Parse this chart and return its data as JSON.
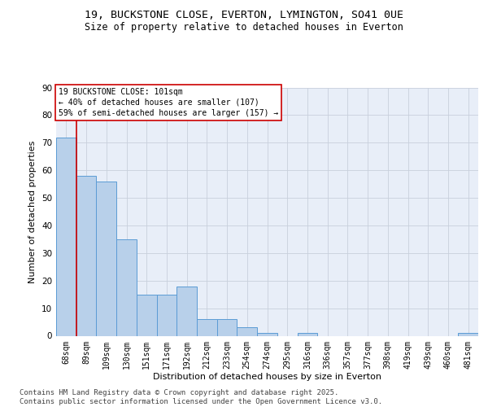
{
  "title1": "19, BUCKSTONE CLOSE, EVERTON, LYMINGTON, SO41 0UE",
  "title2": "Size of property relative to detached houses in Everton",
  "xlabel": "Distribution of detached houses by size in Everton",
  "ylabel": "Number of detached properties",
  "categories": [
    "68sqm",
    "89sqm",
    "109sqm",
    "130sqm",
    "151sqm",
    "171sqm",
    "192sqm",
    "212sqm",
    "233sqm",
    "254sqm",
    "274sqm",
    "295sqm",
    "316sqm",
    "336sqm",
    "357sqm",
    "377sqm",
    "398sqm",
    "419sqm",
    "439sqm",
    "460sqm",
    "481sqm"
  ],
  "values": [
    72,
    58,
    56,
    35,
    15,
    15,
    18,
    6,
    6,
    3,
    1,
    0,
    1,
    0,
    0,
    0,
    0,
    0,
    0,
    0,
    1
  ],
  "bar_color": "#b8d0ea",
  "bar_edge_color": "#5b9bd5",
  "background_color": "#e8eef8",
  "grid_color": "#c8d0dc",
  "vline_color": "#cc0000",
  "vline_x": 0.5,
  "annotation_text": "19 BUCKSTONE CLOSE: 101sqm\n← 40% of detached houses are smaller (107)\n59% of semi-detached houses are larger (157) →",
  "annotation_box_edgecolor": "#cc0000",
  "ylim": [
    0,
    90
  ],
  "yticks": [
    0,
    10,
    20,
    30,
    40,
    50,
    60,
    70,
    80,
    90
  ],
  "footer": "Contains HM Land Registry data © Crown copyright and database right 2025.\nContains public sector information licensed under the Open Government Licence v3.0.",
  "title_fontsize": 9.5,
  "subtitle_fontsize": 8.5,
  "tick_fontsize": 7,
  "label_fontsize": 8,
  "annot_fontsize": 7,
  "footer_fontsize": 6.5
}
